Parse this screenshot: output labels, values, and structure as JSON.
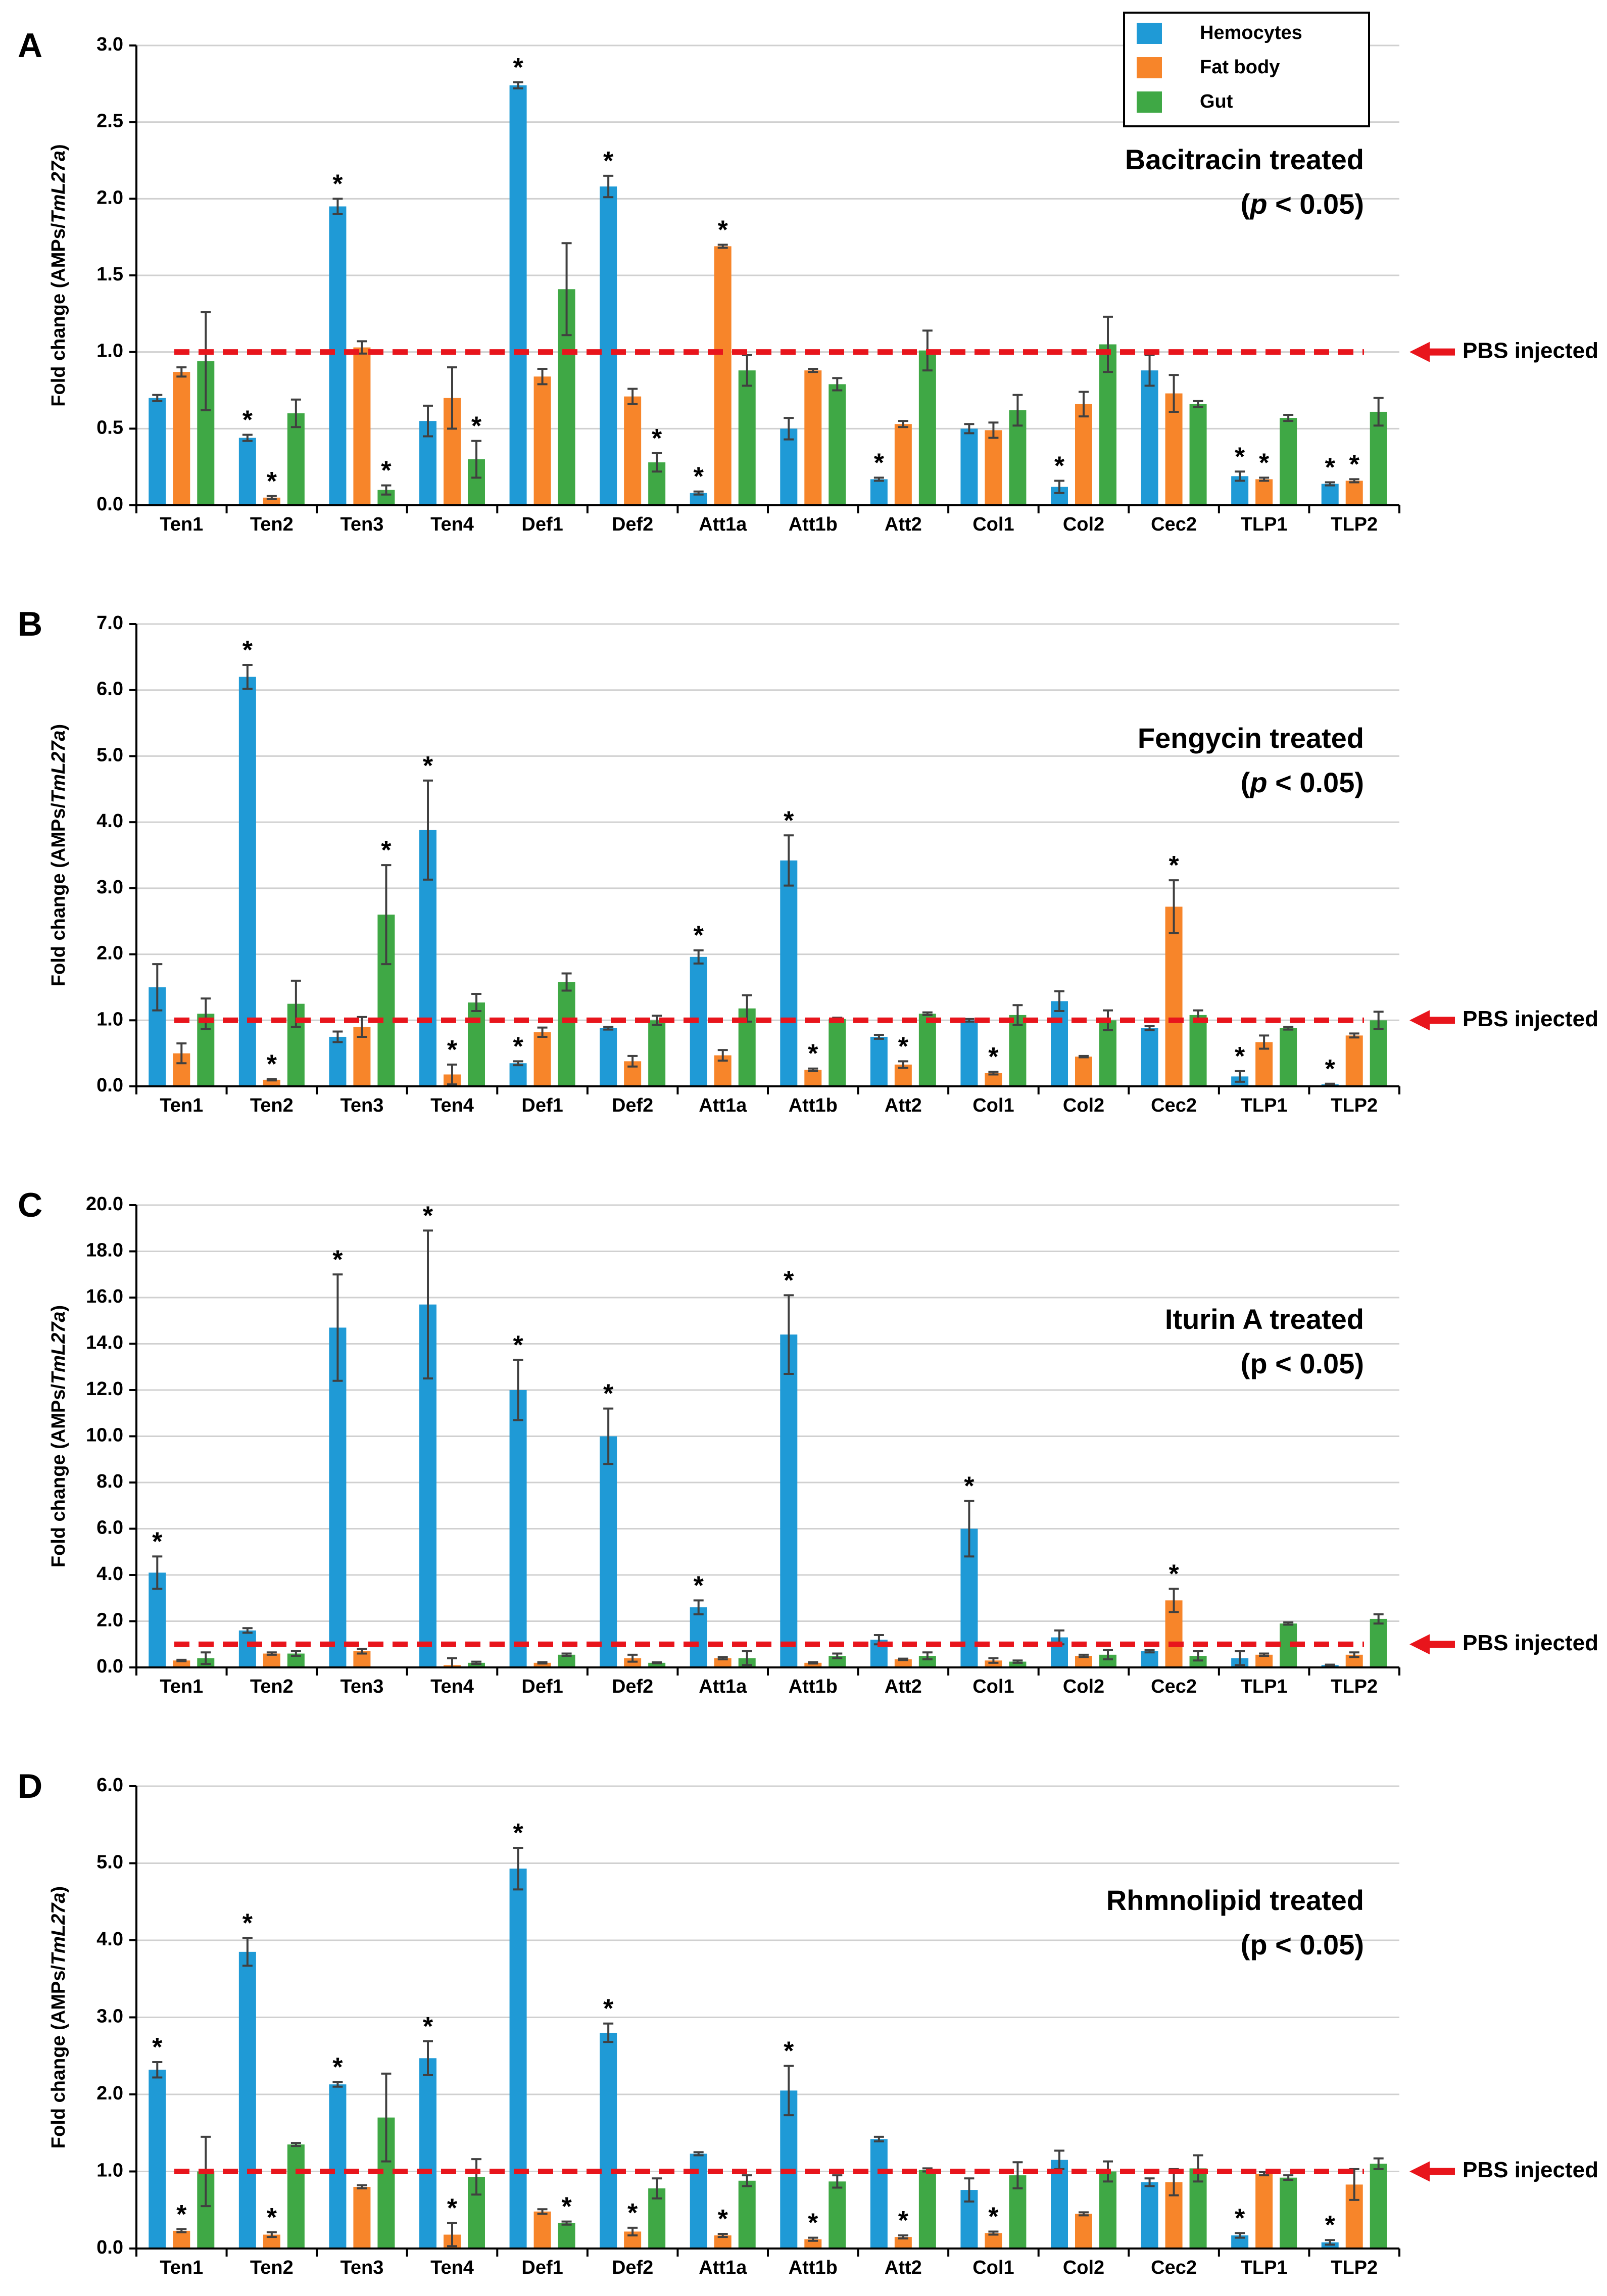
{
  "legend": [
    {
      "label": "Hemocytes",
      "color": "#1F9AD6"
    },
    {
      "label": "Fat body",
      "color": "#F7852A"
    },
    {
      "label": "Gut",
      "color": "#3FA845"
    }
  ],
  "reference_line": {
    "label": "PBS injected",
    "value": 1.0,
    "color": "#E8151C"
  },
  "significance_marker": "*",
  "chart_data": [
    {
      "panel": "A",
      "type": "bar",
      "title": "Bacitracin treated",
      "subtitle_prefix": "(",
      "subtitle_italic": "p",
      "subtitle_rest": " < 0.05)",
      "ylabel_prefix": "Fold change (AMPs/",
      "ylabel_italic": "TmL27a",
      "ylabel_suffix": ")",
      "ylim": [
        0,
        3.0
      ],
      "yticks": [
        "0.0",
        "0.5",
        "1.0",
        "1.5",
        "2.0",
        "2.5",
        "3.0"
      ],
      "grid": true,
      "categories": [
        "Ten1",
        "Ten2",
        "Ten3",
        "Ten4",
        "Def1",
        "Def2",
        "Att1a",
        "Att1b",
        "Att2",
        "Col1",
        "Col2",
        "Cec2",
        "TLP1",
        "TLP2"
      ],
      "series": [
        {
          "name": "Hemocytes",
          "values": [
            0.7,
            0.44,
            1.95,
            0.55,
            2.74,
            2.08,
            0.08,
            0.5,
            0.17,
            0.5,
            0.12,
            0.88,
            0.19,
            0.14
          ],
          "errors": [
            0.02,
            0.02,
            0.05,
            0.1,
            0.02,
            0.07,
            0.01,
            0.07,
            0.01,
            0.03,
            0.04,
            0.1,
            0.03,
            0.01
          ],
          "sig": [
            false,
            true,
            true,
            false,
            true,
            true,
            true,
            false,
            true,
            false,
            true,
            false,
            true,
            true
          ]
        },
        {
          "name": "Fat body",
          "values": [
            0.87,
            0.05,
            1.03,
            0.7,
            0.84,
            0.71,
            1.69,
            0.88,
            0.53,
            0.49,
            0.66,
            0.73,
            0.17,
            0.16
          ],
          "errors": [
            0.03,
            0.01,
            0.04,
            0.2,
            0.05,
            0.05,
            0.01,
            0.01,
            0.02,
            0.05,
            0.08,
            0.12,
            0.01,
            0.01
          ],
          "sig": [
            false,
            true,
            false,
            false,
            false,
            false,
            true,
            false,
            false,
            false,
            false,
            false,
            true,
            true
          ]
        },
        {
          "name": "Gut",
          "values": [
            0.94,
            0.6,
            0.1,
            0.3,
            1.41,
            0.28,
            0.88,
            0.79,
            1.01,
            0.62,
            1.05,
            0.66,
            0.57,
            0.61
          ],
          "errors": [
            0.32,
            0.09,
            0.03,
            0.12,
            0.3,
            0.06,
            0.1,
            0.04,
            0.13,
            0.1,
            0.18,
            0.02,
            0.02,
            0.09
          ],
          "sig": [
            false,
            false,
            true,
            true,
            false,
            true,
            false,
            false,
            false,
            false,
            false,
            false,
            false,
            false
          ]
        }
      ]
    },
    {
      "panel": "B",
      "type": "bar",
      "title": "Fengycin treated",
      "subtitle_prefix": "(",
      "subtitle_italic": "p",
      "subtitle_rest": " < 0.05)",
      "ylabel_prefix": "Fold change (AMPs/",
      "ylabel_italic": "TmL27a",
      "ylabel_suffix": ")",
      "ylim": [
        0,
        7.0
      ],
      "yticks": [
        "0.0",
        "1.0",
        "2.0",
        "3.0",
        "4.0",
        "5.0",
        "6.0",
        "7.0"
      ],
      "grid": true,
      "categories": [
        "Ten1",
        "Ten2",
        "Ten3",
        "Ten4",
        "Def1",
        "Def2",
        "Att1a",
        "Att1b",
        "Att2",
        "Col1",
        "Col2",
        "Cec2",
        "TLP1",
        "TLP2"
      ],
      "series": [
        {
          "name": "Hemocytes",
          "values": [
            1.5,
            6.2,
            0.75,
            3.88,
            0.35,
            0.88,
            1.96,
            3.42,
            0.75,
            1.0,
            1.29,
            0.88,
            0.15,
            0.03
          ],
          "errors": [
            0.35,
            0.18,
            0.08,
            0.75,
            0.03,
            0.02,
            0.1,
            0.38,
            0.03,
            0.02,
            0.15,
            0.03,
            0.08,
            0.01
          ],
          "sig": [
            false,
            true,
            false,
            true,
            true,
            false,
            true,
            true,
            false,
            false,
            false,
            false,
            true,
            true
          ]
        },
        {
          "name": "Fat body",
          "values": [
            0.5,
            0.1,
            0.9,
            0.18,
            0.82,
            0.38,
            0.47,
            0.25,
            0.33,
            0.2,
            0.45,
            2.72,
            0.67,
            0.77
          ],
          "errors": [
            0.15,
            0.01,
            0.15,
            0.15,
            0.07,
            0.08,
            0.08,
            0.02,
            0.05,
            0.02,
            0.01,
            0.4,
            0.1,
            0.03
          ],
          "sig": [
            false,
            true,
            false,
            true,
            false,
            false,
            false,
            true,
            true,
            true,
            false,
            true,
            false,
            false
          ]
        },
        {
          "name": "Gut",
          "values": [
            1.1,
            1.25,
            2.6,
            1.27,
            1.58,
            1.0,
            1.18,
            1.02,
            1.1,
            1.08,
            1.0,
            1.08,
            0.88,
            1.0
          ],
          "errors": [
            0.23,
            0.35,
            0.75,
            0.13,
            0.13,
            0.07,
            0.2,
            0.02,
            0.02,
            0.15,
            0.15,
            0.07,
            0.02,
            0.13
          ],
          "sig": [
            false,
            false,
            true,
            false,
            false,
            false,
            false,
            false,
            false,
            false,
            false,
            false,
            false,
            false
          ]
        }
      ]
    },
    {
      "panel": "C",
      "type": "bar",
      "title": "Iturin A treated",
      "subtitle_prefix": "(",
      "subtitle_italic": "",
      "subtitle_rest": "p < 0.05)",
      "ylabel_prefix": "Fold change (AMPs/",
      "ylabel_italic": "TmL27a",
      "ylabel_suffix": ")",
      "ylim": [
        0,
        20.0
      ],
      "yticks": [
        "0.0",
        "2.0",
        "4.0",
        "6.0",
        "8.0",
        "10.0",
        "12.0",
        "14.0",
        "16.0",
        "18.0",
        "20.0"
      ],
      "grid": true,
      "categories": [
        "Ten1",
        "Ten2",
        "Ten3",
        "Ten4",
        "Def1",
        "Def2",
        "Att1a",
        "Att1b",
        "Att2",
        "Col1",
        "Col2",
        "Cec2",
        "TLP1",
        "TLP2"
      ],
      "series": [
        {
          "name": "Hemocytes",
          "values": [
            4.1,
            1.6,
            14.7,
            15.7,
            12.0,
            10.0,
            2.6,
            14.4,
            1.2,
            6.0,
            1.3,
            0.7,
            0.4,
            0.1
          ],
          "errors": [
            0.7,
            0.1,
            2.3,
            3.2,
            1.3,
            1.2,
            0.3,
            1.7,
            0.2,
            1.2,
            0.3,
            0.05,
            0.3,
            0.02
          ],
          "sig": [
            true,
            false,
            true,
            true,
            true,
            true,
            true,
            true,
            false,
            true,
            false,
            false,
            false,
            false
          ]
        },
        {
          "name": "Fat body",
          "values": [
            0.3,
            0.6,
            0.7,
            0.1,
            0.2,
            0.4,
            0.4,
            0.2,
            0.35,
            0.3,
            0.5,
            2.9,
            0.55,
            0.55
          ],
          "errors": [
            0.03,
            0.05,
            0.1,
            0.3,
            0.03,
            0.15,
            0.05,
            0.03,
            0.03,
            0.1,
            0.05,
            0.5,
            0.05,
            0.1
          ],
          "sig": [
            false,
            false,
            false,
            false,
            false,
            false,
            false,
            false,
            false,
            false,
            false,
            true,
            false,
            false
          ]
        },
        {
          "name": "Gut",
          "values": [
            0.4,
            0.6,
            0.0,
            0.2,
            0.55,
            0.2,
            0.4,
            0.5,
            0.5,
            0.25,
            0.55,
            0.5,
            1.9,
            2.1
          ],
          "errors": [
            0.25,
            0.1,
            0.0,
            0.05,
            0.05,
            0.02,
            0.3,
            0.1,
            0.15,
            0.05,
            0.2,
            0.2,
            0.05,
            0.2
          ],
          "sig": [
            false,
            false,
            false,
            false,
            false,
            false,
            false,
            false,
            false,
            false,
            false,
            false,
            false,
            false
          ]
        }
      ]
    },
    {
      "panel": "D",
      "type": "bar",
      "title": "Rhmnolipid treated",
      "subtitle_prefix": "(",
      "subtitle_italic": "",
      "subtitle_rest": "p < 0.05)",
      "ylabel_prefix": "Fold change (AMPs/",
      "ylabel_italic": "TmL27a",
      "ylabel_suffix": ")",
      "ylim": [
        0,
        6.0
      ],
      "yticks": [
        "0.0",
        "1.0",
        "2.0",
        "3.0",
        "4.0",
        "5.0",
        "6.0"
      ],
      "grid": true,
      "categories": [
        "Ten1",
        "Ten2",
        "Ten3",
        "Ten4",
        "Def1",
        "Def2",
        "Att1a",
        "Att1b",
        "Att2",
        "Col1",
        "Col2",
        "Cec2",
        "TLP1",
        "TLP2"
      ],
      "series": [
        {
          "name": "Hemocytes",
          "values": [
            2.32,
            3.85,
            2.13,
            2.47,
            4.93,
            2.8,
            1.23,
            2.05,
            1.42,
            0.76,
            1.15,
            0.86,
            0.17,
            0.08
          ],
          "errors": [
            0.1,
            0.18,
            0.03,
            0.22,
            0.27,
            0.12,
            0.02,
            0.32,
            0.03,
            0.15,
            0.12,
            0.05,
            0.03,
            0.03
          ],
          "sig": [
            true,
            true,
            true,
            true,
            true,
            true,
            false,
            true,
            false,
            false,
            false,
            false,
            true,
            true
          ]
        },
        {
          "name": "Fat body",
          "values": [
            0.23,
            0.18,
            0.8,
            0.18,
            0.48,
            0.22,
            0.17,
            0.12,
            0.15,
            0.2,
            0.45,
            0.86,
            0.97,
            0.83
          ],
          "errors": [
            0.02,
            0.03,
            0.02,
            0.15,
            0.03,
            0.05,
            0.02,
            0.02,
            0.02,
            0.02,
            0.02,
            0.17,
            0.02,
            0.2
          ],
          "sig": [
            true,
            true,
            false,
            true,
            false,
            true,
            true,
            true,
            true,
            true,
            false,
            false,
            false,
            false
          ]
        },
        {
          "name": "Gut",
          "values": [
            1.0,
            1.35,
            1.7,
            0.93,
            0.33,
            0.78,
            0.88,
            0.87,
            1.02,
            0.95,
            1.0,
            1.04,
            0.92,
            1.1
          ],
          "errors": [
            0.45,
            0.02,
            0.57,
            0.23,
            0.02,
            0.13,
            0.07,
            0.08,
            0.02,
            0.17,
            0.13,
            0.17,
            0.03,
            0.07
          ],
          "sig": [
            false,
            false,
            false,
            false,
            true,
            false,
            false,
            false,
            false,
            false,
            false,
            false,
            false,
            false
          ]
        }
      ]
    }
  ]
}
